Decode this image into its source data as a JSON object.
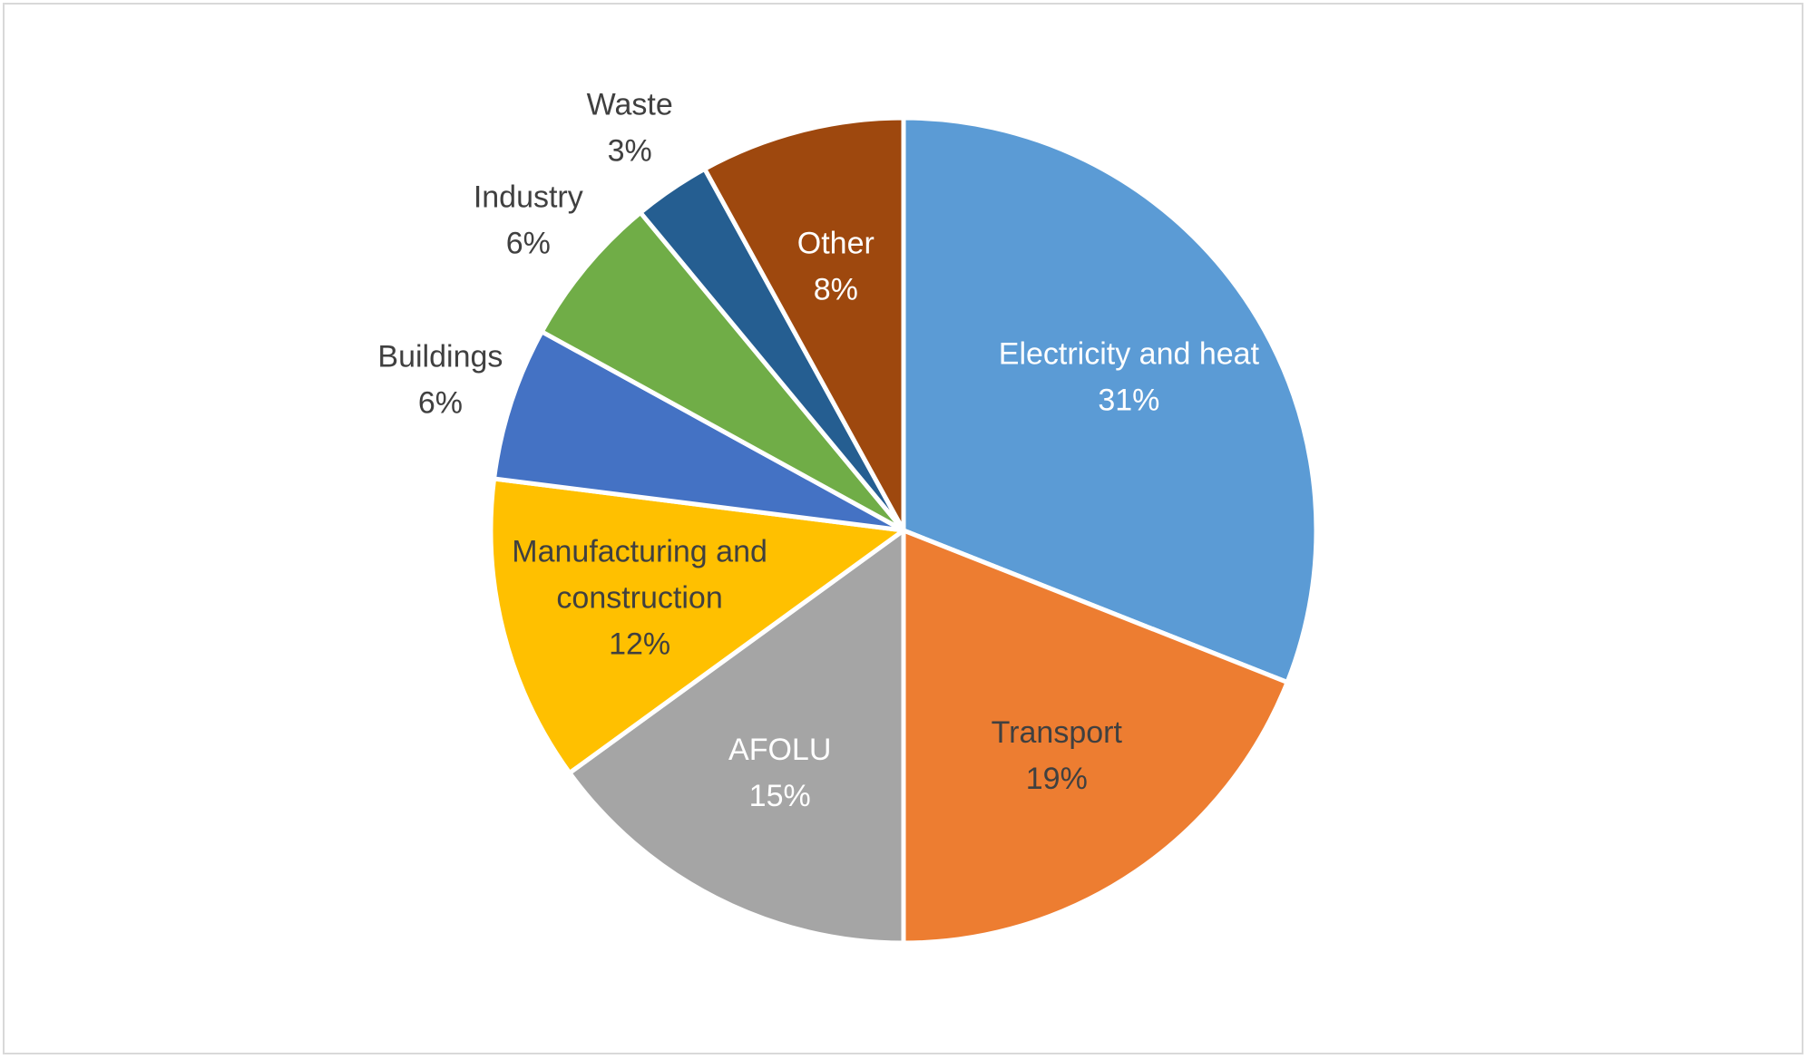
{
  "chart_data": {
    "type": "pie",
    "title": "",
    "slices": [
      {
        "label": "Electricity and heat",
        "value": 31,
        "display": "31%",
        "color": "#5b9bd5",
        "label_color": "#ffffff",
        "label_position": "inside"
      },
      {
        "label": "Transport",
        "value": 19,
        "display": "19%",
        "color": "#ed7d31",
        "label_color": "#404040",
        "label_position": "inside"
      },
      {
        "label": "AFOLU",
        "value": 15,
        "display": "15%",
        "color": "#a5a5a5",
        "label_color": "#ffffff",
        "label_position": "inside"
      },
      {
        "label": "Manufacturing and construction",
        "value": 12,
        "display": "12%",
        "color": "#ffc000",
        "label_color": "#404040",
        "label_position": "inside"
      },
      {
        "label": "Buildings",
        "value": 6,
        "display": "6%",
        "color": "#4472c4",
        "label_color": "#404040",
        "label_position": "outside"
      },
      {
        "label": "Industry",
        "value": 6,
        "display": "6%",
        "color": "#70ad47",
        "label_color": "#404040",
        "label_position": "outside"
      },
      {
        "label": "Waste",
        "value": 3,
        "display": "3%",
        "color": "#255e91",
        "label_color": "#404040",
        "label_position": "outside"
      },
      {
        "label": "Other",
        "value": 8,
        "display": "8%",
        "color": "#9e480e",
        "label_color": "#ffffff",
        "label_position": "inside"
      }
    ],
    "start_angle": "12 o'clock",
    "direction": "clockwise",
    "legend": "none"
  }
}
